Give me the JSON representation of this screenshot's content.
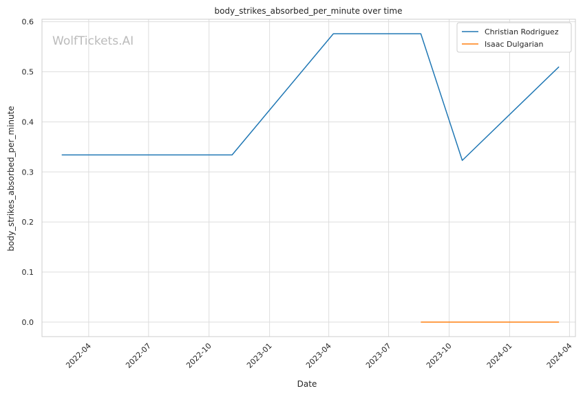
{
  "chart_data": {
    "type": "line",
    "title": "body_strikes_absorbed_per_minute over time",
    "xlabel": "Date",
    "ylabel": "body_strikes_absorbed_per_minute",
    "watermark": "WolfTickets.AI",
    "x_ticks": [
      "2022-04",
      "2022-07",
      "2022-10",
      "2023-01",
      "2023-04",
      "2023-07",
      "2023-10",
      "2024-01",
      "2024-04"
    ],
    "y_ticks": [
      "0.0",
      "0.1",
      "0.2",
      "0.3",
      "0.4",
      "0.5",
      "0.6"
    ],
    "xlim": [
      "2022-01-20",
      "2024-04-10"
    ],
    "ylim": [
      -0.029,
      0.605
    ],
    "grid": true,
    "legend_position": "top-right",
    "series": [
      {
        "name": "Christian Rodriguez",
        "color": "#1f77b4",
        "points": [
          {
            "x": "2022-02-19",
            "y": 0.334
          },
          {
            "x": "2022-11-05",
            "y": 0.334
          },
          {
            "x": "2023-04-08",
            "y": 0.576
          },
          {
            "x": "2023-08-19",
            "y": 0.576
          },
          {
            "x": "2023-10-21",
            "y": 0.323
          },
          {
            "x": "2024-03-16",
            "y": 0.51
          }
        ]
      },
      {
        "name": "Isaac Dulgarian",
        "color": "#ff7f0e",
        "points": [
          {
            "x": "2023-08-19",
            "y": 0.0
          },
          {
            "x": "2024-03-16",
            "y": 0.0
          }
        ]
      }
    ]
  }
}
